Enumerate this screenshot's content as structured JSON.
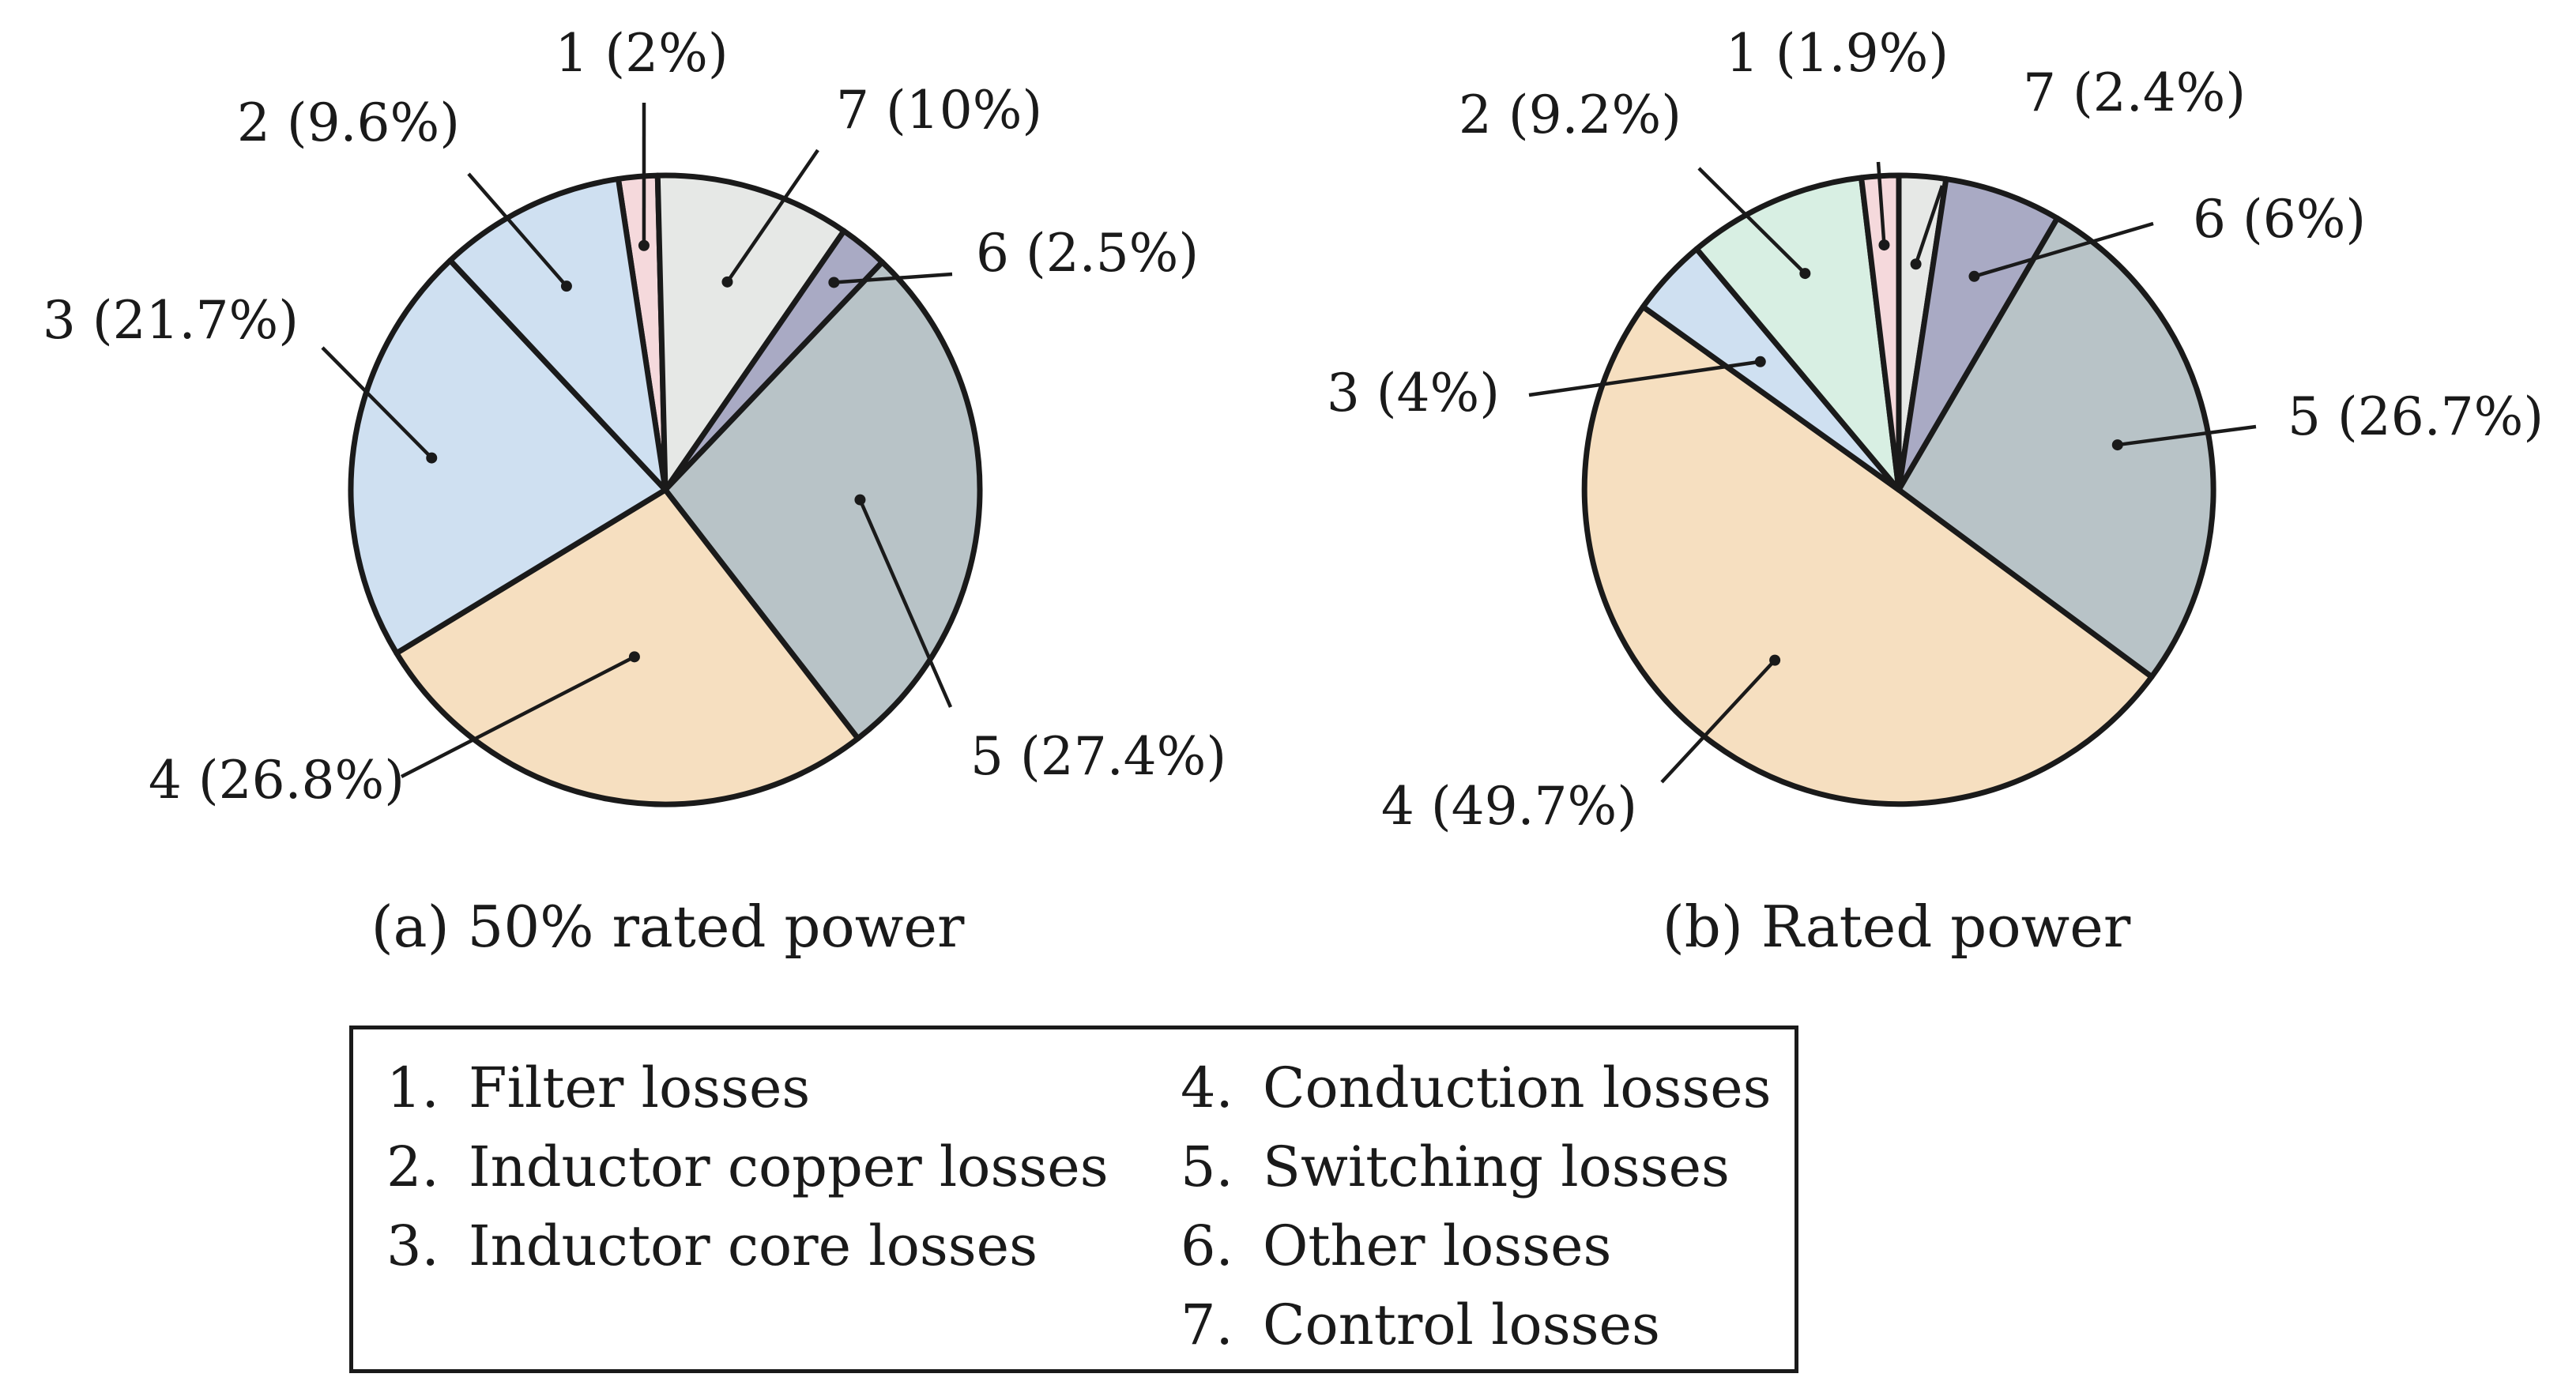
{
  "chart_data": [
    {
      "type": "pie",
      "title": "(a) 50% rated power",
      "slices": [
        {
          "id": 1,
          "value": 2.0,
          "label": "1 (2%)",
          "color": "#f5d9dc"
        },
        {
          "id": 7,
          "value": 10.0,
          "label": "7 (10%)",
          "color": "#e6e8e6"
        },
        {
          "id": 6,
          "value": 2.5,
          "label": "6 (2.5%)",
          "color": "#a9aac4"
        },
        {
          "id": 5,
          "value": 27.4,
          "label": "5 (27.4%)",
          "color": "#b8c3c7"
        },
        {
          "id": 4,
          "value": 26.8,
          "label": "4 (26.8%)",
          "color": "#f6dfc0"
        },
        {
          "id": 3,
          "value": 21.7,
          "label": "3 (21.7%)",
          "color": "#cfe0f1"
        },
        {
          "id": 2,
          "value": 9.6,
          "label": "2 (9.6%)",
          "color": "#cfe0f1"
        }
      ]
    },
    {
      "type": "pie",
      "title": "(b) Rated power",
      "slices": [
        {
          "id": 7,
          "value": 2.4,
          "label": "7 (2.4%)",
          "color": "#e6e8e6"
        },
        {
          "id": 6,
          "value": 6.0,
          "label": "6 (6%)",
          "color": "#a9aac4"
        },
        {
          "id": 5,
          "value": 26.7,
          "label": "5 (26.7%)",
          "color": "#b8c3c7"
        },
        {
          "id": 4,
          "value": 49.7,
          "label": "4 (49.7%)",
          "color": "#f6dfc0"
        },
        {
          "id": 3,
          "value": 4.0,
          "label": "3 (4%)",
          "color": "#cfe0f1"
        },
        {
          "id": 2,
          "value": 9.2,
          "label": "2 (9.2%)",
          "color": "#d8efe3"
        },
        {
          "id": 1,
          "value": 1.9,
          "label": "1 (1.9%)",
          "color": "#f5d9dc"
        }
      ]
    }
  ],
  "legend": {
    "items": [
      {
        "num": "1.",
        "text": "Filter losses"
      },
      {
        "num": "2.",
        "text": "Inductor copper losses"
      },
      {
        "num": "3.",
        "text": "Inductor core losses"
      },
      {
        "num": "4.",
        "text": "Conduction losses"
      },
      {
        "num": "5.",
        "text": "Switching losses"
      },
      {
        "num": "6.",
        "text": "Other losses"
      },
      {
        "num": "7.",
        "text": "Control losses"
      }
    ]
  }
}
